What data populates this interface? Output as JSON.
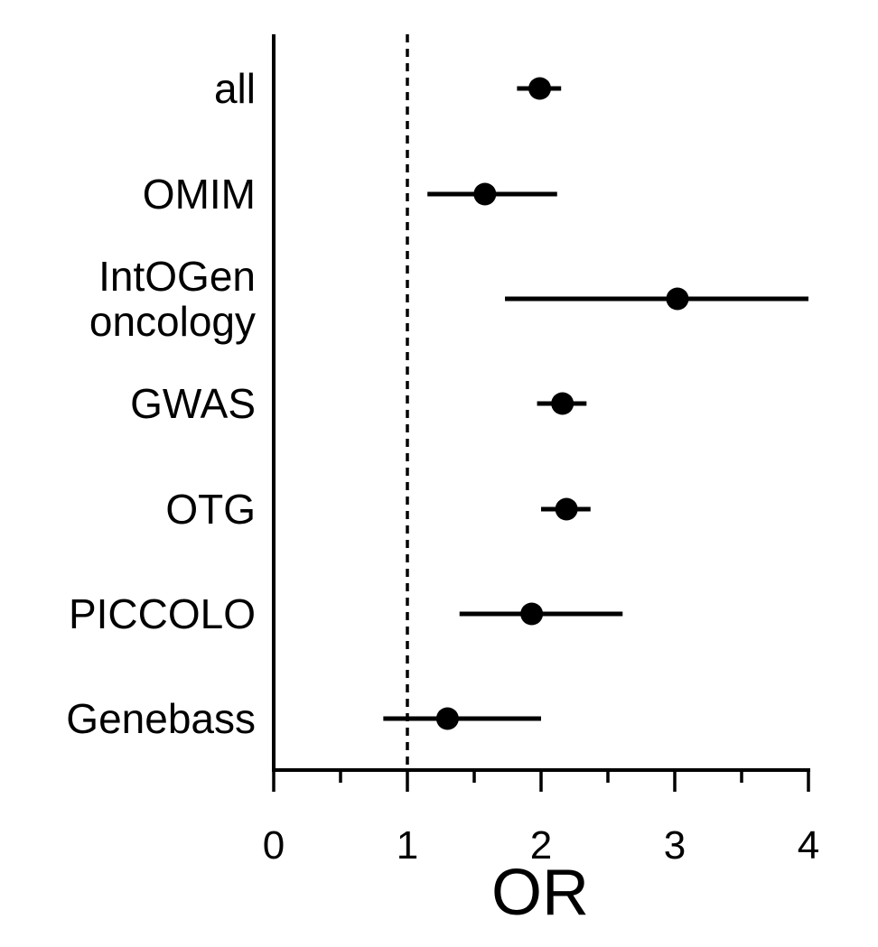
{
  "chart_data": {
    "type": "forest",
    "xlabel": "OR",
    "xlim": [
      0,
      4
    ],
    "xticks": [
      0,
      1,
      2,
      3,
      4
    ],
    "minor_tick_step": 0.5,
    "reference_line": 1,
    "reference_line_style": "dashed",
    "grid": false,
    "colors": {
      "line": "#000000",
      "marker": "#000000"
    },
    "rows": [
      {
        "label": [
          "all"
        ],
        "or": 1.99,
        "ci_low": 1.82,
        "ci_high": 2.15
      },
      {
        "label": [
          "OMIM"
        ],
        "or": 1.58,
        "ci_low": 1.15,
        "ci_high": 2.12
      },
      {
        "label": [
          "IntOGen",
          "oncology"
        ],
        "or": 3.02,
        "ci_low": 1.73,
        "ci_high": 4.0
      },
      {
        "label": [
          "GWAS"
        ],
        "or": 2.16,
        "ci_low": 1.97,
        "ci_high": 2.34
      },
      {
        "label": [
          "OTG"
        ],
        "or": 2.19,
        "ci_low": 2.0,
        "ci_high": 2.37
      },
      {
        "label": [
          "PICCOLO"
        ],
        "or": 1.93,
        "ci_low": 1.39,
        "ci_high": 2.61
      },
      {
        "label": [
          "Genebass"
        ],
        "or": 1.3,
        "ci_low": 0.82,
        "ci_high": 2.0
      }
    ]
  }
}
